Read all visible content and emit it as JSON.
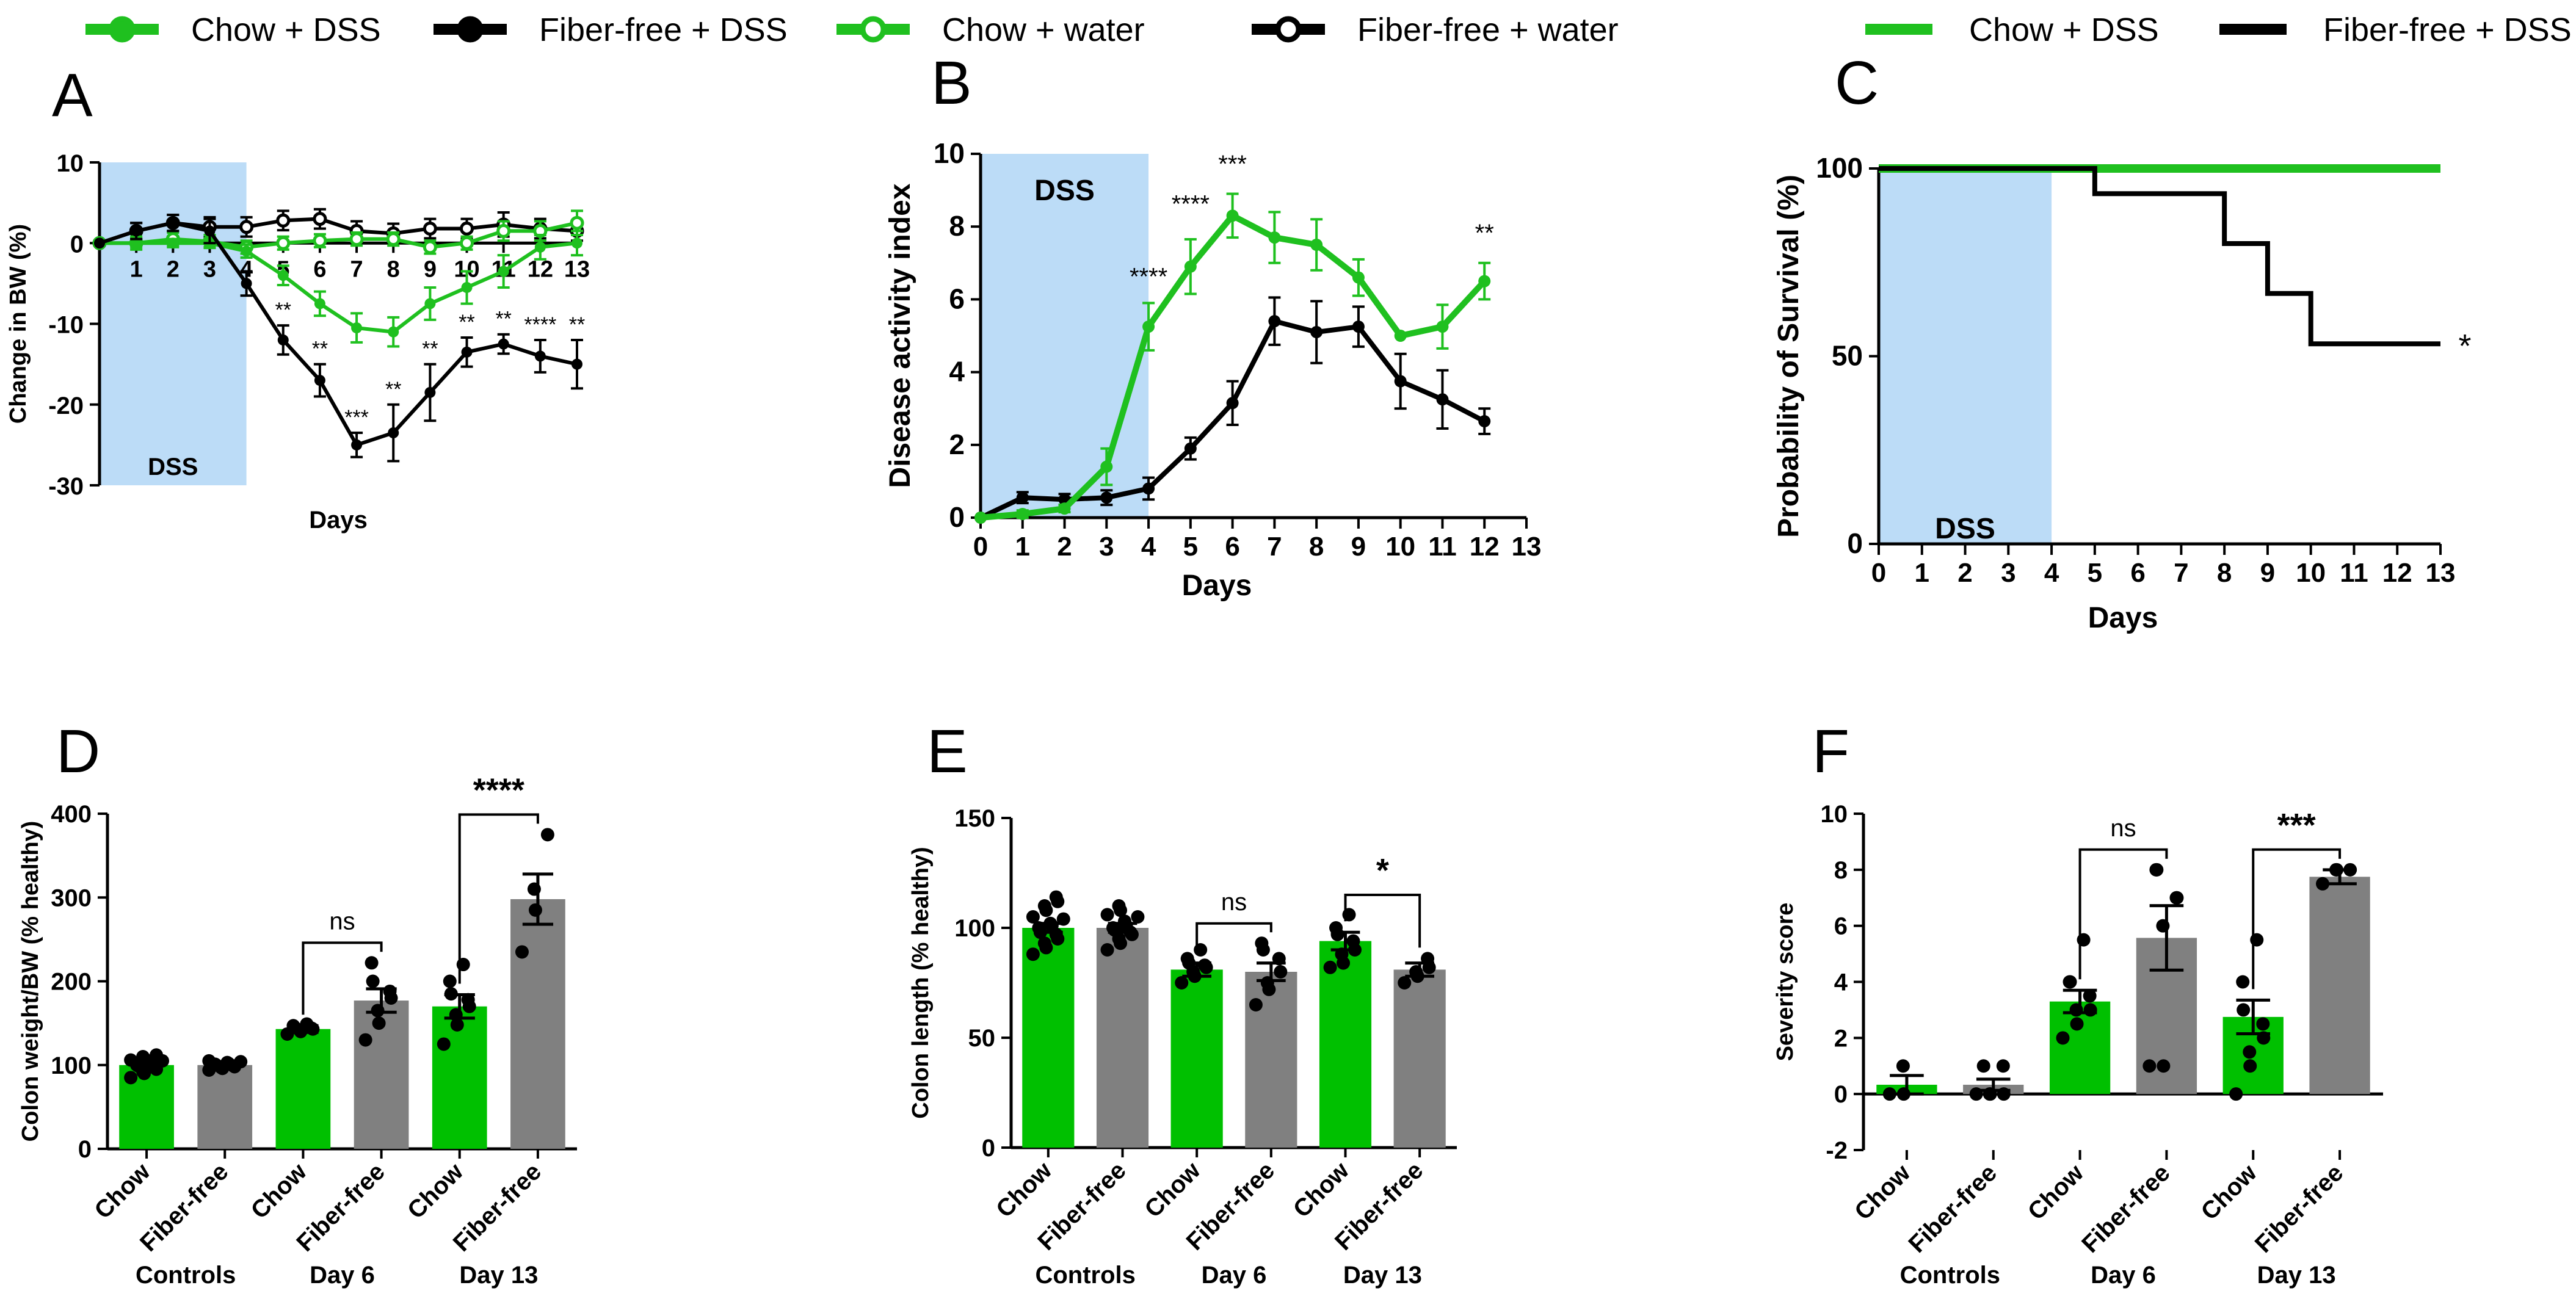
{
  "colors": {
    "green": "#1fc01f",
    "black": "#000000",
    "gray": "#808080",
    "bar_green": "#00c000",
    "shade": "#bcdcf7"
  },
  "legend_left": [
    {
      "label": "Chow + DSS",
      "color": "#1fc01f",
      "open": false
    },
    {
      "label": "Fiber-free + DSS",
      "color": "#000000",
      "open": false
    },
    {
      "label": "Chow + water",
      "color": "#1fc01f",
      "open": true
    },
    {
      "label": "Fiber-free + water",
      "color": "#000000",
      "open": true
    }
  ],
  "legend_right": [
    {
      "label": "Chow + DSS",
      "color": "#1fc01f"
    },
    {
      "label": "Fiber-free + DSS",
      "color": "#000000"
    }
  ],
  "chart_data": [
    {
      "panel": "A",
      "type": "line",
      "xlabel": "Days",
      "ylabel": "Change in BW (%)",
      "xlim": [
        0,
        13
      ],
      "ylim": [
        -30,
        10
      ],
      "yticks": [
        10,
        0,
        -10,
        -20,
        -30
      ],
      "xticks": [
        "1",
        "2",
        "3",
        "4",
        "5",
        "6",
        "7",
        "8",
        "9",
        "10",
        "11",
        "12",
        "13"
      ],
      "shade": {
        "label": "DSS",
        "from": 0,
        "to": 4
      },
      "series": [
        {
          "name": "Fiber-free + water",
          "color": "#000000",
          "open": true,
          "x": [
            0,
            1,
            2,
            3,
            4,
            5,
            6,
            7,
            8,
            9,
            10,
            11,
            12,
            13
          ],
          "y": [
            0,
            1.5,
            2.5,
            2,
            2,
            2.8,
            3,
            1.5,
            1.2,
            1.8,
            1.8,
            2.3,
            1.8,
            1.5
          ],
          "err": [
            0,
            1,
            1,
            1.2,
            1.2,
            1.2,
            1.2,
            1.2,
            1.2,
            1.2,
            1.2,
            1.5,
            1.2,
            1.2
          ]
        },
        {
          "name": "Chow + water",
          "color": "#1fc01f",
          "open": true,
          "x": [
            0,
            1,
            2,
            3,
            4,
            5,
            6,
            7,
            8,
            9,
            10,
            11,
            12,
            13
          ],
          "y": [
            0,
            0,
            0.5,
            0.2,
            -0.5,
            0,
            0.3,
            0.5,
            0.5,
            -0.5,
            0,
            1.5,
            1.5,
            2.5
          ],
          "err": [
            0,
            0.8,
            0.8,
            0.8,
            0.8,
            0.8,
            0.8,
            0.8,
            0.8,
            0.8,
            0.8,
            1.2,
            1.2,
            1.5
          ]
        },
        {
          "name": "Chow + DSS",
          "color": "#1fc01f",
          "open": false,
          "x": [
            0,
            1,
            2,
            3,
            4,
            5,
            6,
            7,
            8,
            9,
            10,
            11,
            12,
            13
          ],
          "y": [
            0,
            0,
            0,
            0,
            -1,
            -4,
            -7.5,
            -10.5,
            -11,
            -7.5,
            -5.5,
            -3.5,
            -0.5,
            0
          ],
          "err": [
            0,
            0.5,
            0.5,
            0.5,
            0.8,
            1.2,
            1.5,
            1.8,
            1.8,
            2,
            2,
            2,
            1.5,
            1.5
          ]
        },
        {
          "name": "Fiber-free + DSS",
          "color": "#000000",
          "open": false,
          "x": [
            0,
            1,
            2,
            3,
            4,
            5,
            6,
            7,
            8,
            9,
            10,
            11,
            12,
            13
          ],
          "y": [
            0,
            1.5,
            2.5,
            1.5,
            -5,
            -12,
            -17,
            -25,
            -23.5,
            -18.5,
            -13.5,
            -12.5,
            -14,
            -15
          ],
          "err": [
            0,
            1,
            1,
            1.5,
            1.5,
            1.8,
            2,
            1.5,
            3.5,
            3.5,
            1.8,
            1.2,
            2,
            3
          ]
        }
      ],
      "annotations": [
        {
          "x": 5,
          "label": "**"
        },
        {
          "x": 6,
          "label": "**"
        },
        {
          "x": 7,
          "label": "***"
        },
        {
          "x": 8,
          "label": "**"
        },
        {
          "x": 9,
          "label": "**"
        },
        {
          "x": 10,
          "label": "**"
        },
        {
          "x": 11,
          "label": "**"
        },
        {
          "x": 12,
          "label": "****"
        },
        {
          "x": 13,
          "label": "**"
        }
      ]
    },
    {
      "panel": "B",
      "type": "line",
      "xlabel": "Days",
      "ylabel": "Disease activity index",
      "xlim": [
        0,
        13
      ],
      "ylim": [
        0,
        10
      ],
      "yticks": [
        0,
        2,
        4,
        6,
        8,
        10
      ],
      "xticks": [
        "0",
        "1",
        "2",
        "3",
        "4",
        "5",
        "6",
        "7",
        "8",
        "9",
        "10",
        "11",
        "12",
        "13"
      ],
      "shade": {
        "label": "DSS",
        "from": 0,
        "to": 4
      },
      "series": [
        {
          "name": "Fiber-free + DSS",
          "color": "#000000",
          "open": false,
          "x": [
            0,
            1,
            2,
            3,
            4,
            5,
            6,
            7,
            8,
            9,
            10,
            11,
            12
          ],
          "y": [
            0,
            0.55,
            0.5,
            0.55,
            0.8,
            1.9,
            3.15,
            5.4,
            5.1,
            5.25,
            3.75,
            3.25,
            2.65
          ],
          "err": [
            0,
            0.15,
            0.15,
            0.2,
            0.3,
            0.3,
            0.6,
            0.65,
            0.85,
            0.55,
            0.75,
            0.8,
            0.35
          ]
        },
        {
          "name": "Chow + DSS",
          "color": "#1fc01f",
          "open": false,
          "x": [
            0,
            1,
            2,
            3,
            4,
            5,
            6,
            7,
            8,
            9,
            10,
            11,
            12
          ],
          "y": [
            0,
            0.1,
            0.25,
            1.4,
            5.25,
            6.9,
            8.3,
            7.7,
            7.5,
            6.6,
            5,
            5.25,
            6.5
          ],
          "err": [
            0,
            0.1,
            0.1,
            0.5,
            0.65,
            0.75,
            0.6,
            0.7,
            0.7,
            0.5,
            0,
            0.6,
            0.5
          ]
        }
      ],
      "annotations": [
        {
          "x": 4,
          "y": 6.4,
          "label": "****"
        },
        {
          "x": 5,
          "y": 8.4,
          "label": "****"
        },
        {
          "x": 6,
          "y": 9.5,
          "label": "***"
        },
        {
          "x": 12,
          "y": 7.6,
          "label": "**"
        }
      ]
    },
    {
      "panel": "C",
      "type": "line",
      "xlabel": "Days",
      "ylabel": "Probability of Survival (%)",
      "xlim": [
        0,
        13
      ],
      "ylim": [
        0,
        100
      ],
      "yticks": [
        0,
        50,
        100
      ],
      "xticks": [
        "0",
        "1",
        "2",
        "3",
        "4",
        "5",
        "6",
        "7",
        "8",
        "9",
        "10",
        "11",
        "12",
        "13"
      ],
      "shade": {
        "label": "DSS",
        "from": 0,
        "to": 4
      },
      "series": [
        {
          "name": "Chow + DSS",
          "color": "#1fc01f",
          "step": true,
          "x": [
            0,
            13
          ],
          "y": [
            100,
            100
          ]
        },
        {
          "name": "Fiber-free + DSS",
          "color": "#000000",
          "step": true,
          "x": [
            0,
            5,
            8,
            9,
            10,
            13
          ],
          "y": [
            100,
            93.3,
            80,
            66.7,
            53.3,
            53.3
          ]
        }
      ],
      "annotations": [
        {
          "x": 13,
          "y": 53.3,
          "label": "*"
        }
      ]
    },
    {
      "panel": "D",
      "type": "bar",
      "ylabel": "Colon weight/BW (% healthy)",
      "ylim": [
        0,
        400
      ],
      "yticks": [
        0,
        100,
        200,
        300,
        400
      ],
      "categories": [
        "Chow",
        "Fiber-free",
        "Chow",
        "Fiber-free",
        "Chow",
        "Fiber-free"
      ],
      "groups": [
        "Controls",
        "Day 6",
        "Day 13"
      ],
      "values": [
        100,
        100,
        143,
        177,
        170,
        298
      ],
      "err": [
        3,
        3,
        4,
        14,
        14,
        30
      ],
      "points": [
        [
          85,
          90,
          92,
          95,
          97,
          99,
          100,
          102,
          103,
          105,
          106,
          108,
          110,
          112
        ],
        [
          94,
          96,
          97,
          98,
          99,
          100,
          101,
          102,
          103,
          104,
          105
        ],
        [
          137,
          140,
          142,
          143,
          144,
          145,
          147,
          149
        ],
        [
          130,
          150,
          165,
          180,
          188,
          200,
          222
        ],
        [
          125,
          148,
          160,
          170,
          178,
          185,
          200,
          220
        ],
        [
          235,
          285,
          310,
          375
        ]
      ],
      "brackets": [
        {
          "from": 2,
          "to": 3,
          "label": "ns"
        },
        {
          "from": 4,
          "to": 5,
          "label": "****"
        }
      ]
    },
    {
      "panel": "E",
      "type": "bar",
      "ylabel": "Colon length (% healthy)",
      "ylim": [
        0,
        150
      ],
      "yticks": [
        0,
        50,
        100,
        150
      ],
      "categories": [
        "Chow",
        "Fiber-free",
        "Chow",
        "Fiber-free",
        "Chow",
        "Fiber-free"
      ],
      "groups": [
        "Controls",
        "Day 6",
        "Day 13"
      ],
      "values": [
        100,
        100,
        81,
        80,
        94,
        81
      ],
      "err": [
        2,
        2,
        3,
        4,
        4,
        3
      ],
      "points": [
        [
          88,
          91,
          93,
          95,
          97,
          98,
          100,
          101,
          102,
          104,
          105,
          108,
          110,
          112,
          114
        ],
        [
          90,
          93,
          95,
          97,
          98,
          99,
          100,
          101,
          103,
          105,
          106,
          108,
          110
        ],
        [
          75,
          78,
          80,
          82,
          83,
          84,
          86,
          90
        ],
        [
          65,
          72,
          75,
          80,
          86,
          90,
          93
        ],
        [
          82,
          84,
          88,
          90,
          94,
          97,
          100,
          106
        ],
        [
          75,
          78,
          80,
          82,
          86
        ]
      ],
      "brackets": [
        {
          "from": 2,
          "to": 3,
          "label": "ns"
        },
        {
          "from": 4,
          "to": 5,
          "label": "*"
        }
      ]
    },
    {
      "panel": "F",
      "type": "bar",
      "ylabel": "Severity score",
      "ylim": [
        -2,
        10
      ],
      "yticks": [
        -2,
        0,
        2,
        4,
        6,
        8,
        10
      ],
      "categories": [
        "Chow",
        "Fiber-free",
        "Chow",
        "Fiber-free",
        "Chow",
        "Fiber-free"
      ],
      "groups": [
        "Controls",
        "Day 6",
        "Day 13"
      ],
      "values": [
        0.33,
        0.33,
        3.3,
        5.57,
        2.75,
        7.75
      ],
      "err": [
        0.33,
        0.2,
        0.4,
        1.15,
        0.6,
        0.25
      ],
      "points": [
        [
          0,
          0,
          1
        ],
        [
          0,
          0,
          0,
          0,
          1,
          1
        ],
        [
          2,
          2.5,
          3,
          3,
          3.5,
          4,
          4,
          5.5
        ],
        [
          1,
          1,
          6,
          7,
          7,
          8,
          8
        ],
        [
          0,
          1,
          1.5,
          2,
          2.5,
          3,
          4,
          5.5
        ],
        [
          7.5,
          8,
          8,
          8
        ]
      ],
      "brackets": [
        {
          "from": 2,
          "to": 3,
          "label": "ns"
        },
        {
          "from": 4,
          "to": 5,
          "label": "***"
        }
      ]
    }
  ]
}
